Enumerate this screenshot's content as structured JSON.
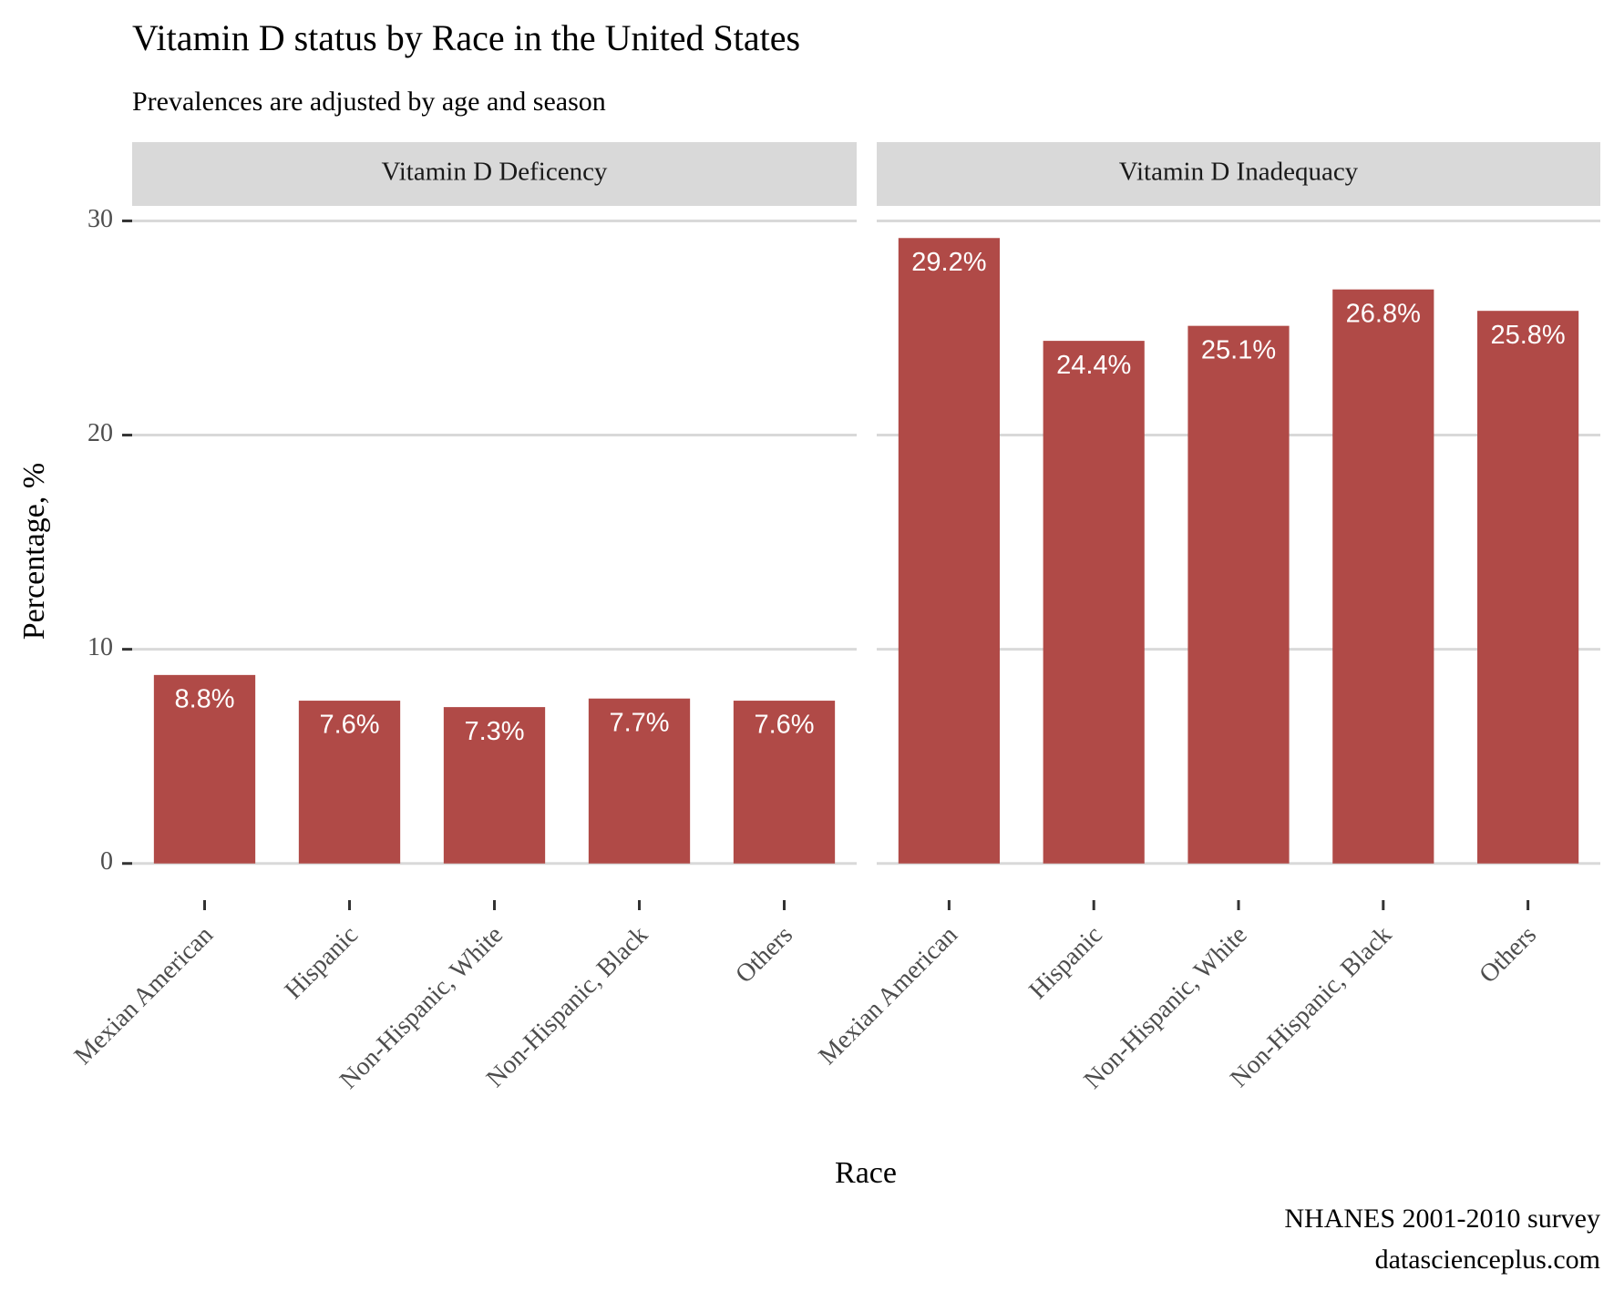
{
  "chart_data": {
    "type": "bar",
    "title": "Vitamin D status by Race in the United States",
    "subtitle": "Prevalences are adjusted by age and season",
    "x_label": "Race",
    "y_label": "Percentage, %",
    "caption": [
      "NHANES 2001-2010 survey",
      "datascienceplus.com"
    ],
    "categories": [
      "Mexian American",
      "Hispanic",
      "Non-Hispanic, White",
      "Non-Hispanic, Black",
      "Others"
    ],
    "series": [
      {
        "name": "Vitamin D Deficency",
        "color": "#b04a47",
        "values": [
          8.8,
          7.6,
          7.3,
          7.7,
          7.6
        ],
        "value_labels": [
          "8.8%",
          "7.6%",
          "7.3%",
          "7.7%",
          "7.6%"
        ]
      },
      {
        "name": "Vitamin D Inadequacy",
        "color": "#b04a47",
        "values": [
          29.2,
          24.4,
          25.1,
          26.8,
          25.8
        ],
        "value_labels": [
          "29.2%",
          "24.4%",
          "25.1%",
          "26.8%",
          "25.8%"
        ]
      }
    ],
    "facet": true,
    "ylim": [
      -1.5,
      30.7
    ],
    "yticks": [
      0,
      10,
      20,
      30
    ],
    "grid": true
  }
}
